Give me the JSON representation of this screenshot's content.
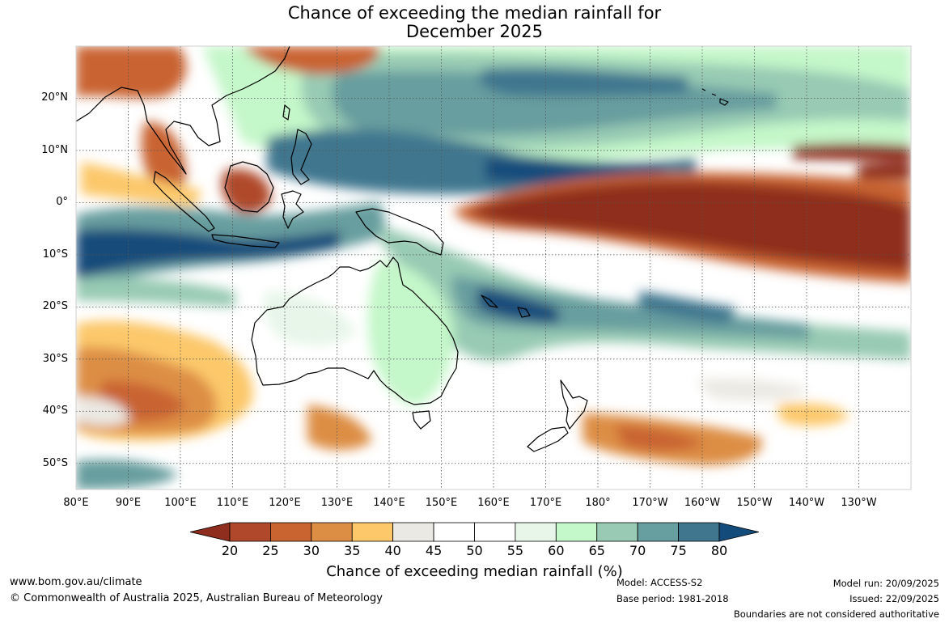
{
  "title": {
    "line1": "Chance of exceeding the median rainfall for",
    "line2": "December 2025"
  },
  "map": {
    "extent": {
      "lon_min": 80,
      "lon_max": 240,
      "lat_min": -55,
      "lat_max": 30
    },
    "lat_ticks": [
      {
        "value": 20,
        "label": "20°N"
      },
      {
        "value": 10,
        "label": "10°N"
      },
      {
        "value": 0,
        "label": "0°"
      },
      {
        "value": -10,
        "label": "10°S"
      },
      {
        "value": -20,
        "label": "20°S"
      },
      {
        "value": -30,
        "label": "30°S"
      },
      {
        "value": -40,
        "label": "40°S"
      },
      {
        "value": -50,
        "label": "50°S"
      }
    ],
    "lon_ticks": [
      {
        "value": 80,
        "label": "80°E"
      },
      {
        "value": 90,
        "label": "90°E"
      },
      {
        "value": 100,
        "label": "100°E"
      },
      {
        "value": 110,
        "label": "110°E"
      },
      {
        "value": 120,
        "label": "120°E"
      },
      {
        "value": 130,
        "label": "130°E"
      },
      {
        "value": 140,
        "label": "140°E"
      },
      {
        "value": 150,
        "label": "150°E"
      },
      {
        "value": 160,
        "label": "160°E"
      },
      {
        "value": 170,
        "label": "170°E"
      },
      {
        "value": 180,
        "label": "180°"
      },
      {
        "value": 190,
        "label": "170°W"
      },
      {
        "value": 200,
        "label": "160°W"
      },
      {
        "value": 210,
        "label": "150°W"
      },
      {
        "value": 220,
        "label": "140°W"
      },
      {
        "value": 230,
        "label": "130°W"
      }
    ],
    "regions": [
      {
        "name": "Australia",
        "outlook": "mostly 45-60%, wetter in north-east and interior"
      },
      {
        "name": "Central equatorial Pacific",
        "outlook": "below 25%"
      },
      {
        "name": "Maritime Continent / eastern Indian Ocean",
        "outlook": "above 75%"
      },
      {
        "name": "South Pacific Convergence Zone",
        "outlook": "above 70%"
      },
      {
        "name": "Southern Indian Ocean 25-45°S",
        "outlook": "25-40%"
      }
    ]
  },
  "colorbar": {
    "title": "Chance of exceeding median rainfall (%)",
    "labels": [
      "20",
      "25",
      "30",
      "35",
      "40",
      "45",
      "50",
      "55",
      "60",
      "65",
      "70",
      "75",
      "80"
    ],
    "colors": [
      "#8f2d1e",
      "#b0482b",
      "#c96430",
      "#dd8e45",
      "#fcc86a",
      "#ebe9e3",
      "#ffffff",
      "#ffffff",
      "#e7f6e9",
      "#c4f7c9",
      "#98cab4",
      "#679e9f",
      "#40778f",
      "#134b7a"
    ]
  },
  "footer": {
    "website": "www.bom.gov.au/climate",
    "copyright": "© Commonwealth of Australia 2025, Australian Bureau of Meteorology",
    "model": "Model: ACCESS-S2",
    "base_period": "Base period: 1981-2018",
    "model_run": "Model run: 20/09/2025",
    "issued": "Issued: 22/09/2025",
    "disclaimer": "Boundaries are not considered authoritative"
  }
}
